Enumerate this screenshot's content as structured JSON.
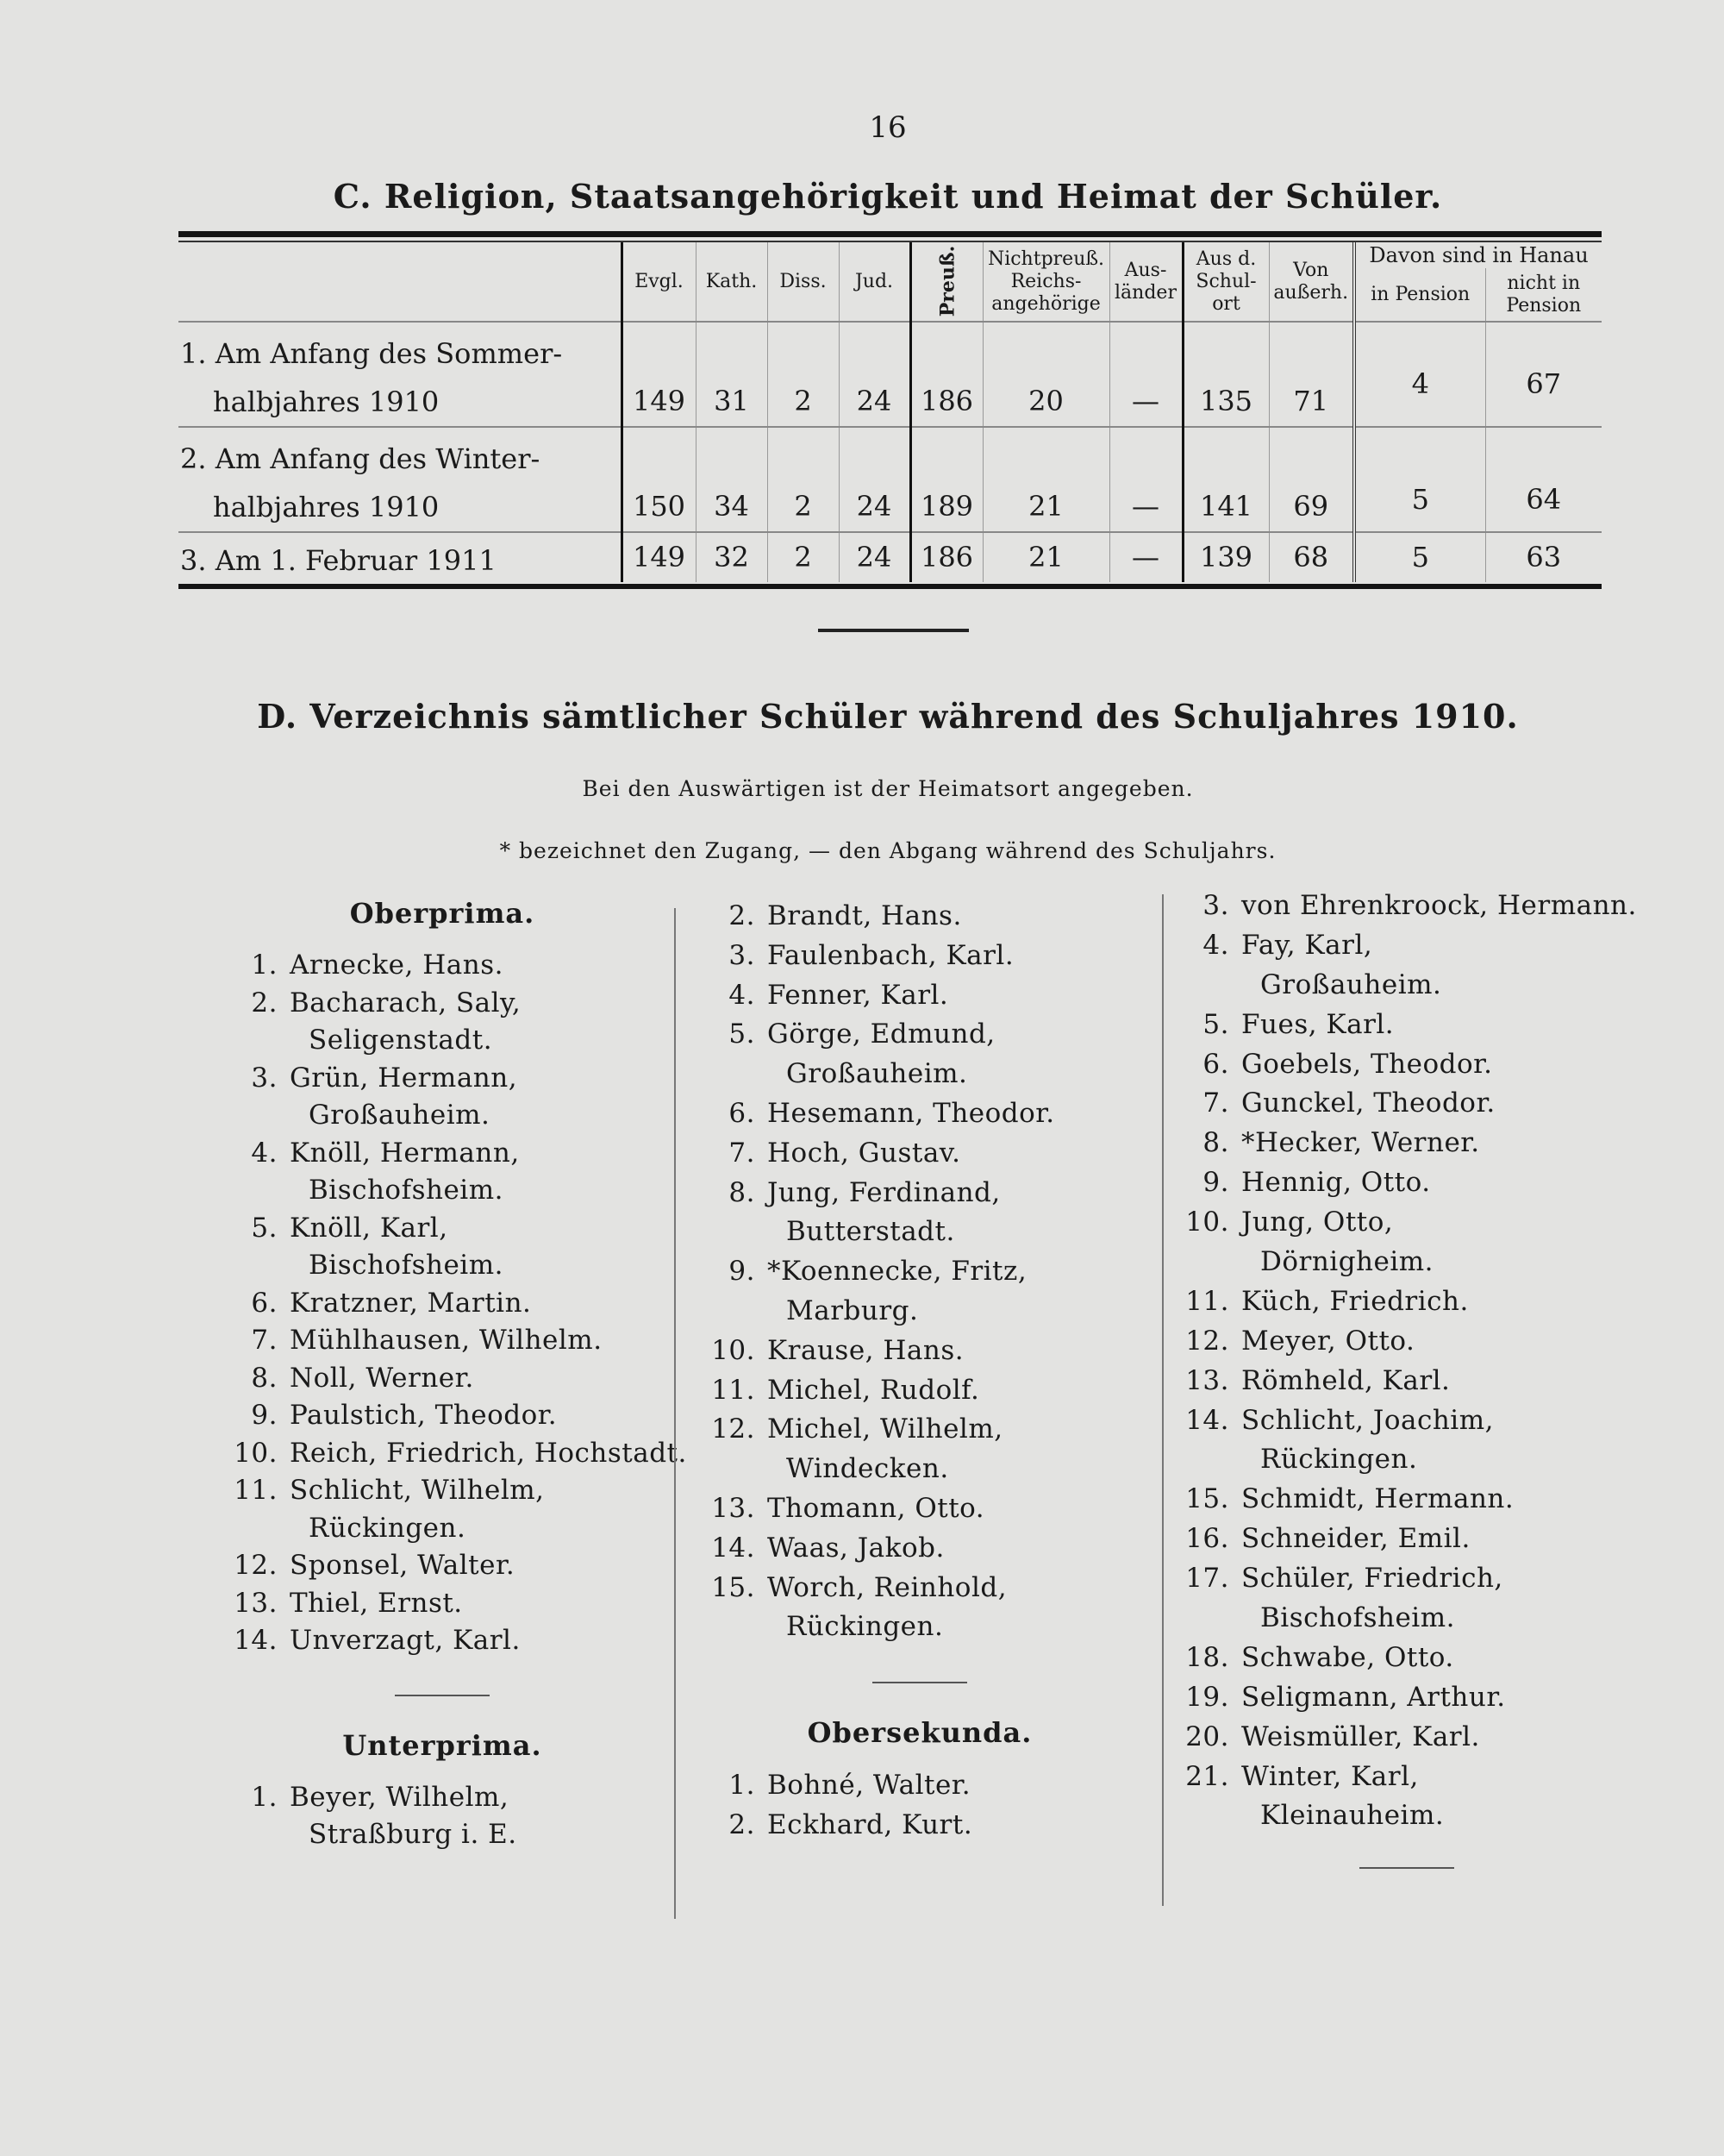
{
  "page_number": "16",
  "section_c": {
    "title": "C. Religion, Staatsangehörigkeit und Heimat der Schüler.",
    "group_header": "Davon sind in Hanau",
    "columns": [
      "Evgl.",
      "Kath.",
      "Diss.",
      "Jud.",
      "Preuß.",
      "Nichtpreuß. Reichs-angehörige",
      "Aus-länder",
      "Aus d. Schul-ort",
      "Von außerh.",
      "in Pension",
      "nicht in Pension"
    ],
    "rows": [
      {
        "label": [
          "1. Am Anfang des Sommer-",
          "halbjahres 1910"
        ],
        "values": [
          "149",
          "31",
          "2",
          "24",
          "186",
          "20",
          "—",
          "135",
          "71",
          "4",
          "67"
        ]
      },
      {
        "label": [
          "2. Am Anfang des Winter-",
          "halbjahres 1910"
        ],
        "values": [
          "150",
          "34",
          "2",
          "24",
          "189",
          "21",
          "—",
          "141",
          "69",
          "5",
          "64"
        ]
      },
      {
        "label": [
          "3. Am 1. Februar 1911"
        ],
        "values": [
          "149",
          "32",
          "2",
          "24",
          "186",
          "21",
          "—",
          "139",
          "68",
          "5",
          "63"
        ]
      }
    ]
  },
  "section_d": {
    "title": "D. Verzeichnis sämtlicher Schüler während des Schuljahres 1910.",
    "note_1": "Bei den Auswärtigen ist der Heimatsort angegeben.",
    "note_2": "* bezeichnet den Zugang, — den Abgang während des Schuljahrs.",
    "columns": [
      [
        {
          "type": "heading",
          "text": "Oberprima."
        },
        {
          "type": "item",
          "num": "1.",
          "lines": [
            "Arnecke, Hans."
          ]
        },
        {
          "type": "item",
          "num": "2.",
          "lines": [
            "Bacharach, Saly,",
            "Seligenstadt."
          ]
        },
        {
          "type": "item",
          "num": "3.",
          "lines": [
            "Grün, Hermann,",
            "Großauheim."
          ]
        },
        {
          "type": "item",
          "num": "4.",
          "lines": [
            "Knöll, Hermann,",
            "Bischofsheim."
          ]
        },
        {
          "type": "item",
          "num": "5.",
          "lines": [
            "Knöll, Karl,",
            "Bischofsheim."
          ]
        },
        {
          "type": "item",
          "num": "6.",
          "lines": [
            "Kratzner, Martin."
          ]
        },
        {
          "type": "item",
          "num": "7.",
          "lines": [
            "Mühlhausen, Wilhelm."
          ]
        },
        {
          "type": "item",
          "num": "8.",
          "lines": [
            "Noll, Werner."
          ]
        },
        {
          "type": "item",
          "num": "9.",
          "lines": [
            "Paulstich, Theodor."
          ]
        },
        {
          "type": "item",
          "num": "10.",
          "lines": [
            "Reich, Friedrich, Hochstadt."
          ]
        },
        {
          "type": "item",
          "num": "11.",
          "lines": [
            "Schlicht, Wilhelm,",
            "Rückingen."
          ]
        },
        {
          "type": "item",
          "num": "12.",
          "lines": [
            "Sponsel, Walter."
          ]
        },
        {
          "type": "item",
          "num": "13.",
          "lines": [
            "Thiel, Ernst."
          ]
        },
        {
          "type": "item",
          "num": "14.",
          "lines": [
            "Unverzagt, Karl."
          ]
        },
        {
          "type": "rule"
        },
        {
          "type": "heading",
          "text": "Unterprima."
        },
        {
          "type": "item",
          "num": "1.",
          "lines": [
            "Beyer, Wilhelm,",
            "Straßburg i. E."
          ]
        }
      ],
      [
        {
          "type": "item",
          "num": "2.",
          "lines": [
            "Brandt, Hans."
          ]
        },
        {
          "type": "item",
          "num": "3.",
          "lines": [
            "Faulenbach, Karl."
          ]
        },
        {
          "type": "item",
          "num": "4.",
          "lines": [
            "Fenner, Karl."
          ]
        },
        {
          "type": "item",
          "num": "5.",
          "lines": [
            "Görge, Edmund,",
            "Großauheim."
          ]
        },
        {
          "type": "item",
          "num": "6.",
          "lines": [
            "Hesemann, Theodor."
          ]
        },
        {
          "type": "item",
          "num": "7.",
          "lines": [
            "Hoch, Gustav."
          ]
        },
        {
          "type": "item",
          "num": "8.",
          "lines": [
            "Jung, Ferdinand,",
            "Butterstadt."
          ]
        },
        {
          "type": "item",
          "num": "9.",
          "lines": [
            "*Koennecke, Fritz,",
            "Marburg."
          ]
        },
        {
          "type": "item",
          "num": "10.",
          "lines": [
            "Krause, Hans."
          ]
        },
        {
          "type": "item",
          "num": "11.",
          "lines": [
            "Michel, Rudolf."
          ]
        },
        {
          "type": "item",
          "num": "12.",
          "lines": [
            "Michel, Wilhelm,",
            "Windecken."
          ]
        },
        {
          "type": "item",
          "num": "13.",
          "lines": [
            "Thomann, Otto."
          ]
        },
        {
          "type": "item",
          "num": "14.",
          "lines": [
            "Waas, Jakob."
          ]
        },
        {
          "type": "item",
          "num": "15.",
          "lines": [
            "Worch, Reinhold,",
            "Rückingen."
          ]
        },
        {
          "type": "rule"
        },
        {
          "type": "heading",
          "text": "Obersekunda."
        },
        {
          "type": "item",
          "num": "1.",
          "lines": [
            "Bohné, Walter."
          ]
        },
        {
          "type": "item",
          "num": "2.",
          "lines": [
            "Eckhard, Kurt."
          ]
        }
      ],
      [
        {
          "type": "item",
          "num": "3.",
          "lines": [
            "von Ehrenkroock, Hermann."
          ]
        },
        {
          "type": "item",
          "num": "4.",
          "lines": [
            "Fay, Karl,",
            "Großauheim."
          ]
        },
        {
          "type": "item",
          "num": "5.",
          "lines": [
            "Fues, Karl."
          ]
        },
        {
          "type": "item",
          "num": "6.",
          "lines": [
            "Goebels, Theodor."
          ]
        },
        {
          "type": "item",
          "num": "7.",
          "lines": [
            "Gunckel, Theodor."
          ]
        },
        {
          "type": "item",
          "num": "8.",
          "lines": [
            "*Hecker, Werner."
          ]
        },
        {
          "type": "item",
          "num": "9.",
          "lines": [
            "Hennig, Otto."
          ]
        },
        {
          "type": "item",
          "num": "10.",
          "lines": [
            "Jung, Otto,",
            "Dörnigheim."
          ]
        },
        {
          "type": "item",
          "num": "11.",
          "lines": [
            "Küch, Friedrich."
          ]
        },
        {
          "type": "item",
          "num": "12.",
          "lines": [
            "Meyer, Otto."
          ]
        },
        {
          "type": "item",
          "num": "13.",
          "lines": [
            "Römheld, Karl."
          ]
        },
        {
          "type": "item",
          "num": "14.",
          "lines": [
            "Schlicht, Joachim,",
            "Rückingen."
          ]
        },
        {
          "type": "item",
          "num": "15.",
          "lines": [
            "Schmidt, Hermann."
          ]
        },
        {
          "type": "item",
          "num": "16.",
          "lines": [
            "Schneider, Emil."
          ]
        },
        {
          "type": "item",
          "num": "17.",
          "lines": [
            "Schüler, Friedrich,",
            "Bischofsheim."
          ]
        },
        {
          "type": "item",
          "num": "18.",
          "lines": [
            "Schwabe, Otto."
          ]
        },
        {
          "type": "item",
          "num": "19.",
          "lines": [
            "Seligmann, Arthur."
          ]
        },
        {
          "type": "item",
          "num": "20.",
          "lines": [
            "Weismüller, Karl."
          ]
        },
        {
          "type": "item",
          "num": "21.",
          "lines": [
            "Winter, Karl,",
            "Kleinauheim."
          ]
        },
        {
          "type": "rule"
        }
      ]
    ]
  }
}
